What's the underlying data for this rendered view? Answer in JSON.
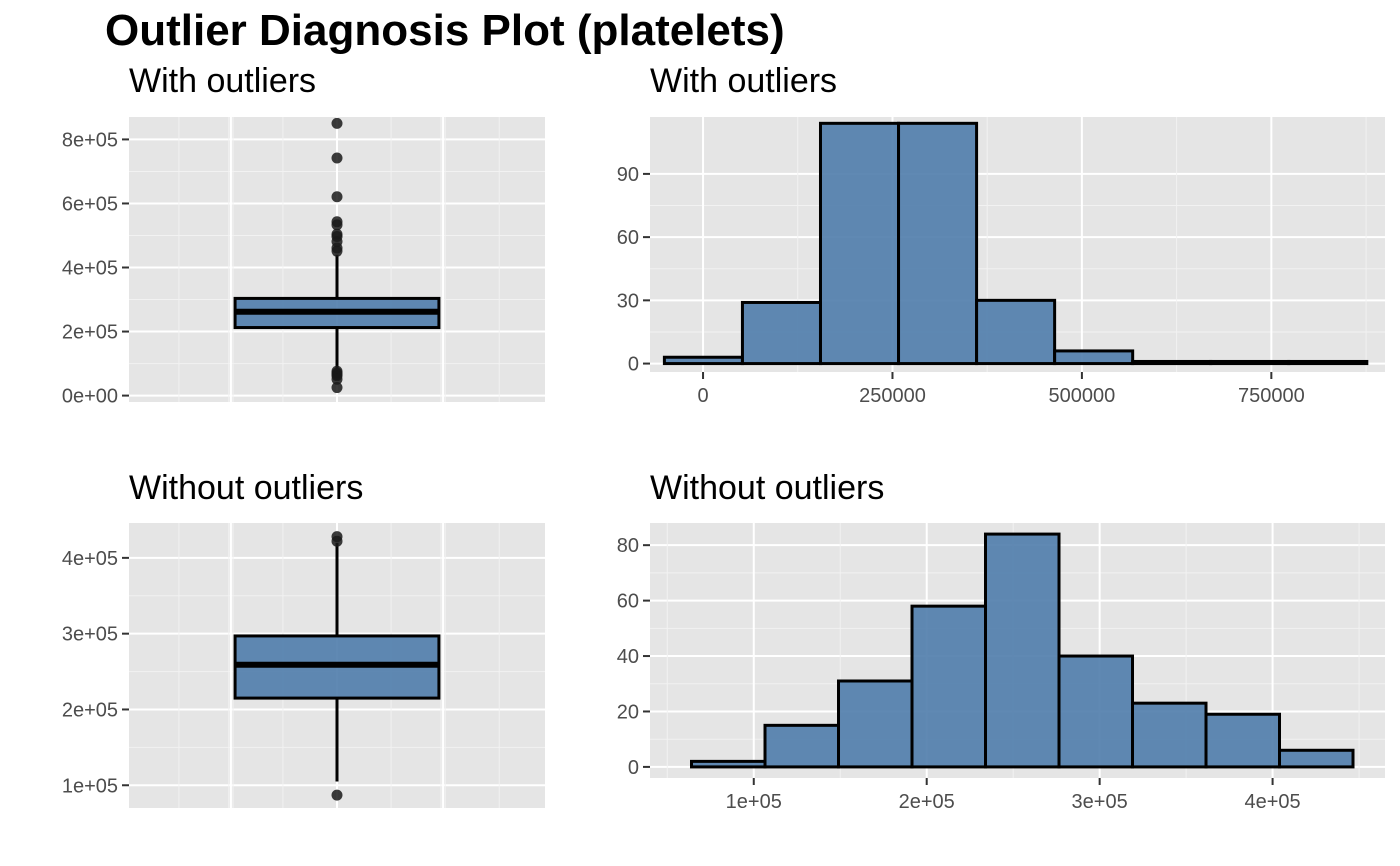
{
  "title": "Outlier Diagnosis Plot (platelets)",
  "colors": {
    "fill": "#4f7cab",
    "panel": "#e5e5e5",
    "grid": "#ffffff",
    "outline": "#000000"
  },
  "chart_data": [
    {
      "id": "box_with",
      "type": "box",
      "title": "With outliers",
      "ylim": [
        -20000,
        870000
      ],
      "yticks": [
        0,
        200000,
        400000,
        600000,
        800000
      ],
      "ytick_labels": [
        "0e+00",
        "2e+05",
        "4e+05",
        "6e+05",
        "8e+05"
      ],
      "box": {
        "q1": 212500,
        "median": 262000,
        "q3": 303500,
        "whisker_low": 83000,
        "whisker_high": 440000
      },
      "outliers": [
        850000,
        742000,
        621000,
        543000,
        533000,
        504000,
        497000,
        481000,
        461000,
        451000,
        76000,
        70000,
        66000,
        62000,
        51000,
        25100
      ]
    },
    {
      "id": "hist_with",
      "type": "bar",
      "title": "With outliers",
      "xlim": [
        -70000,
        900000
      ],
      "ylim": [
        -4,
        117
      ],
      "xticks": [
        0,
        250000,
        500000,
        750000
      ],
      "xtick_labels": [
        "0",
        "250000",
        "500000",
        "750000"
      ],
      "yticks": [
        0,
        30,
        60,
        90
      ],
      "ytick_labels": [
        "0",
        "30",
        "60",
        "90"
      ],
      "bins": [
        {
          "x0": -51000,
          "x1": 52000,
          "count": 3
        },
        {
          "x0": 52000,
          "x1": 155000,
          "count": 29
        },
        {
          "x0": 155000,
          "x1": 258000,
          "count": 114
        },
        {
          "x0": 258000,
          "x1": 361000,
          "count": 114
        },
        {
          "x0": 361000,
          "x1": 464000,
          "count": 30
        },
        {
          "x0": 464000,
          "x1": 567000,
          "count": 6
        },
        {
          "x0": 567000,
          "x1": 670000,
          "count": 1
        },
        {
          "x0": 670000,
          "x1": 773000,
          "count": 1
        },
        {
          "x0": 773000,
          "x1": 876000,
          "count": 1
        }
      ]
    },
    {
      "id": "box_without",
      "type": "box",
      "title": "Without outliers",
      "ylim": [
        70000,
        446000
      ],
      "yticks": [
        100000,
        200000,
        300000,
        400000
      ],
      "ytick_labels": [
        "1e+05",
        "2e+05",
        "3e+05",
        "4e+05"
      ],
      "box": {
        "q1": 215000,
        "median": 259000,
        "q3": 297000,
        "whisker_low": 105000,
        "whisker_high": 420000
      },
      "outliers": [
        428000,
        422000,
        87000
      ]
    },
    {
      "id": "hist_without",
      "type": "bar",
      "title": "Without outliers",
      "xlim": [
        40000,
        465000
      ],
      "ylim": [
        -4,
        88
      ],
      "xticks": [
        100000,
        200000,
        300000,
        400000
      ],
      "xtick_labels": [
        "1e+05",
        "2e+05",
        "3e+05",
        "4e+05"
      ],
      "yticks": [
        0,
        20,
        40,
        60,
        80
      ],
      "ytick_labels": [
        "0",
        "20",
        "40",
        "60",
        "80"
      ],
      "bins": [
        {
          "x0": 64000,
          "x1": 106500,
          "count": 2
        },
        {
          "x0": 106500,
          "x1": 149000,
          "count": 15
        },
        {
          "x0": 149000,
          "x1": 191500,
          "count": 31
        },
        {
          "x0": 191500,
          "x1": 234000,
          "count": 58
        },
        {
          "x0": 234000,
          "x1": 276500,
          "count": 84
        },
        {
          "x0": 276500,
          "x1": 319000,
          "count": 40
        },
        {
          "x0": 319000,
          "x1": 361500,
          "count": 23
        },
        {
          "x0": 361500,
          "x1": 404000,
          "count": 19
        },
        {
          "x0": 404000,
          "x1": 446500,
          "count": 6
        }
      ]
    }
  ]
}
